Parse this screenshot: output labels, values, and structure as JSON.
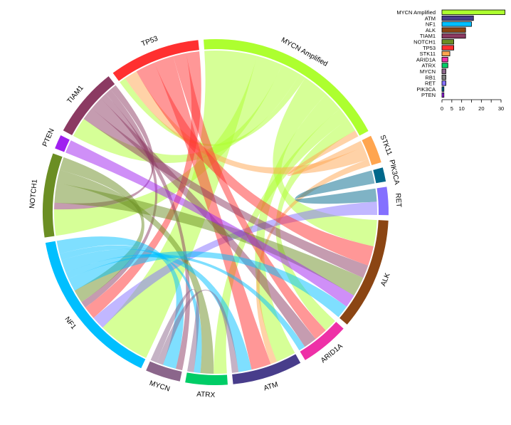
{
  "chart_data": [
    {
      "type": "chord",
      "title": "",
      "nodes": [
        {
          "name": "MYCN Amplified",
          "color": "#adff2f"
        },
        {
          "name": "STK11",
          "color": "#ffa54f"
        },
        {
          "name": "PIK3CA",
          "color": "#00688b"
        },
        {
          "name": "RET",
          "color": "#8470ff"
        },
        {
          "name": "ALK",
          "color": "#8b4513"
        },
        {
          "name": "ARID1A",
          "color": "#ee30a7"
        },
        {
          "name": "ATM",
          "color": "#483d8b"
        },
        {
          "name": "ATRX",
          "color": "#00cd66"
        },
        {
          "name": "MYCN",
          "color": "#8b668b"
        },
        {
          "name": "NF1",
          "color": "#00bfff"
        },
        {
          "name": "NOTCH1",
          "color": "#6b8e23"
        },
        {
          "name": "PTEN",
          "color": "#a020f0"
        },
        {
          "name": "TIAM1",
          "color": "#8b3a62"
        },
        {
          "name": "TP53",
          "color": "#ff3030"
        }
      ],
      "links": [
        {
          "source": "MYCN Amplified",
          "target": "NF1",
          "value": 8
        },
        {
          "source": "MYCN Amplified",
          "target": "NOTCH1",
          "value": 4
        },
        {
          "source": "MYCN Amplified",
          "target": "TIAM1",
          "value": 3
        },
        {
          "source": "MYCN Amplified",
          "target": "TP53",
          "value": 1
        },
        {
          "source": "MYCN Amplified",
          "target": "ALK",
          "value": 4
        },
        {
          "source": "MYCN Amplified",
          "target": "ATM",
          "value": 3
        },
        {
          "source": "MYCN Amplified",
          "target": "ATRX",
          "value": 2
        },
        {
          "source": "MYCN Amplified",
          "target": "ARID1A",
          "value": 2
        },
        {
          "source": "STK11",
          "target": "MYCN Amplified",
          "value": 1
        },
        {
          "source": "STK11",
          "target": "TP53",
          "value": 2
        },
        {
          "source": "STK11",
          "target": "ATM",
          "value": 1
        },
        {
          "source": "PIK3CA",
          "target": "RET",
          "value": 2
        },
        {
          "source": "RET",
          "target": "NF1",
          "value": 2
        },
        {
          "source": "TP53",
          "target": "ALK",
          "value": 3
        },
        {
          "source": "TP53",
          "target": "ATM",
          "value": 3
        },
        {
          "source": "TP53",
          "target": "ARID1A",
          "value": 2
        },
        {
          "source": "TP53",
          "target": "NF1",
          "value": 2
        },
        {
          "source": "TIAM1",
          "target": "ALK",
          "value": 2
        },
        {
          "source": "TIAM1",
          "target": "ARID1A",
          "value": 2
        },
        {
          "source": "TIAM1",
          "target": "MYCN",
          "value": 1
        },
        {
          "source": "TIAM1",
          "target": "NF1",
          "value": 1
        },
        {
          "source": "TIAM1",
          "target": "NOTCH1",
          "value": 1
        },
        {
          "source": "NOTCH1",
          "target": "ALK",
          "value": 3
        },
        {
          "source": "NOTCH1",
          "target": "ATRX",
          "value": 2
        },
        {
          "source": "NOTCH1",
          "target": "NF1",
          "value": 2
        },
        {
          "source": "PTEN",
          "target": "ALK",
          "value": 2
        },
        {
          "source": "NF1",
          "target": "ALK",
          "value": 2
        },
        {
          "source": "NF1",
          "target": "ARID1A",
          "value": 1
        },
        {
          "source": "NF1",
          "target": "ATM",
          "value": 2
        },
        {
          "source": "NF1",
          "target": "ATRX",
          "value": 1
        },
        {
          "source": "NF1",
          "target": "MYCN",
          "value": 2
        },
        {
          "source": "MYCN",
          "target": "ATM",
          "value": 1
        },
        {
          "source": "MYCN",
          "target": "ATRX",
          "value": 1
        }
      ]
    },
    {
      "type": "bar",
      "orientation": "horizontal",
      "categories": [
        "MYCN Amplified",
        "ATM",
        "NF1",
        "ALK",
        "TIAM1",
        "NOTCH1",
        "TP53",
        "STK11",
        "ARID1A",
        "ATRX",
        "MYCN",
        "RB1",
        "RET",
        "PIK3CA",
        "PTEN"
      ],
      "values": [
        32,
        16,
        15,
        12,
        12,
        6,
        6,
        4,
        3,
        3,
        2,
        2,
        2,
        1,
        1
      ],
      "colors": [
        "#adff2f",
        "#483d8b",
        "#00bfff",
        "#8b4513",
        "#8b3a62",
        "#6b8e23",
        "#ff3030",
        "#ffa54f",
        "#ee30a7",
        "#00cd66",
        "#8b668b",
        "#7f7f7f",
        "#8470ff",
        "#00688b",
        "#a020f0"
      ],
      "xlim": [
        0,
        30
      ],
      "xticks": [
        0,
        5,
        10,
        15,
        20,
        25,
        30
      ],
      "xtick_labels": [
        "0",
        "5",
        "10",
        "",
        "20",
        "",
        "30"
      ]
    }
  ]
}
